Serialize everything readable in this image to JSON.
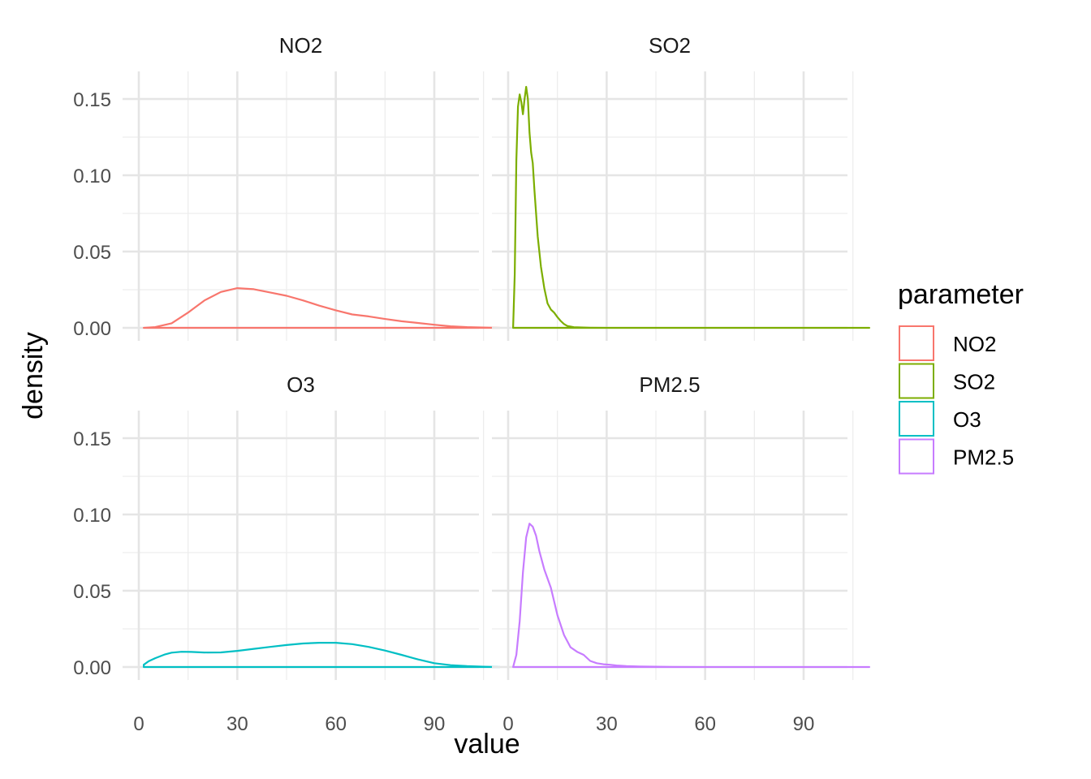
{
  "chart_data": {
    "type": "line",
    "subtype": "density-facets",
    "xlabel": "value",
    "ylabel": "density",
    "xlim": [
      0,
      110
    ],
    "ylim": [
      0,
      0.165
    ],
    "x_ticks": [
      0,
      30,
      60,
      90
    ],
    "y_ticks": [
      0.0,
      0.05,
      0.1,
      0.15
    ],
    "x_tick_labels": [
      "0",
      "30",
      "60",
      "90"
    ],
    "y_tick_labels": [
      "0.00",
      "0.05",
      "0.10",
      "0.15"
    ],
    "grid": true,
    "legend": {
      "title": "parameter",
      "position": "right",
      "entries": [
        {
          "label": "NO2",
          "color": "#F8766D"
        },
        {
          "label": "SO2",
          "color": "#7CAE00"
        },
        {
          "label": "O3",
          "color": "#00BFC4"
        },
        {
          "label": "PM2.5",
          "color": "#C77CFF"
        }
      ]
    },
    "panels": [
      {
        "name": "NO2",
        "color": "#F8766D",
        "x": [
          1.5,
          5,
          10,
          15,
          20,
          25,
          30,
          35,
          40,
          45,
          50,
          55,
          60,
          65,
          70,
          75,
          80,
          85,
          90,
          95,
          100,
          105,
          110
        ],
        "y": [
          0.0,
          0.0005,
          0.003,
          0.01,
          0.018,
          0.0235,
          0.026,
          0.0253,
          0.0232,
          0.021,
          0.018,
          0.0145,
          0.0115,
          0.0088,
          0.0075,
          0.0058,
          0.0043,
          0.0032,
          0.002,
          0.001,
          0.0005,
          0.0002,
          0.0
        ]
      },
      {
        "name": "SO2",
        "color": "#7CAE00",
        "x": [
          1.5,
          2,
          2.5,
          3,
          3.5,
          4,
          4.5,
          5,
          5.5,
          6,
          6.5,
          7,
          7.5,
          8,
          9,
          10,
          11,
          12,
          13,
          14,
          15,
          16,
          17,
          18,
          20,
          25,
          30,
          40,
          60,
          90,
          110
        ],
        "y": [
          0.0,
          0.035,
          0.11,
          0.145,
          0.153,
          0.148,
          0.14,
          0.15,
          0.158,
          0.15,
          0.128,
          0.115,
          0.108,
          0.09,
          0.06,
          0.04,
          0.026,
          0.016,
          0.012,
          0.01,
          0.007,
          0.0045,
          0.0025,
          0.0012,
          0.0004,
          0.0001,
          0.0,
          0.0,
          0.0,
          0.0,
          0.0
        ]
      },
      {
        "name": "O3",
        "color": "#00BFC4",
        "x": [
          1.5,
          3,
          5,
          8,
          10,
          13,
          16,
          20,
          25,
          30,
          35,
          40,
          45,
          50,
          55,
          60,
          65,
          70,
          75,
          80,
          85,
          90,
          95,
          100,
          105,
          110
        ],
        "y": [
          0.0015,
          0.0038,
          0.0058,
          0.0083,
          0.0094,
          0.01,
          0.0099,
          0.0095,
          0.0096,
          0.0106,
          0.0119,
          0.0132,
          0.0144,
          0.0154,
          0.0159,
          0.0159,
          0.015,
          0.0132,
          0.0108,
          0.008,
          0.005,
          0.0025,
          0.0012,
          0.0006,
          0.0002,
          0.0
        ]
      },
      {
        "name": "PM2.5",
        "color": "#C77CFF",
        "x": [
          1.5,
          2.5,
          3.5,
          4.5,
          5.5,
          6.5,
          7.5,
          8.5,
          9.5,
          11,
          13,
          15,
          17,
          19,
          21,
          23,
          25,
          27,
          29,
          31,
          33,
          36,
          40,
          50,
          60,
          90,
          110
        ],
        "y": [
          0.0,
          0.008,
          0.03,
          0.062,
          0.085,
          0.094,
          0.092,
          0.086,
          0.076,
          0.064,
          0.052,
          0.034,
          0.021,
          0.013,
          0.01,
          0.008,
          0.004,
          0.0025,
          0.0018,
          0.0015,
          0.001,
          0.0006,
          0.0003,
          0.0001,
          0.0,
          0.0,
          0.0
        ]
      }
    ]
  }
}
